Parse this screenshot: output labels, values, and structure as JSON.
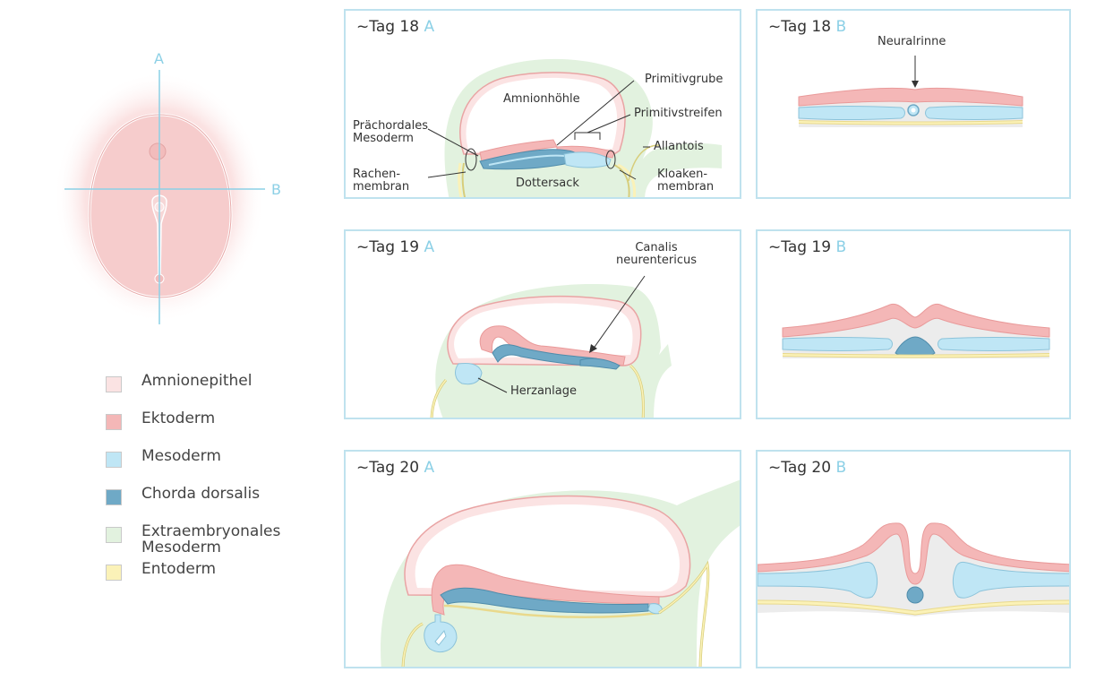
{
  "overview": {
    "axis_a_label": "A",
    "axis_b_label": "B"
  },
  "legend": [
    {
      "label": "Amnionepithel",
      "color": "#fbe3e3"
    },
    {
      "label": "Ektoderm",
      "color": "#f4b7b7"
    },
    {
      "label": "Mesoderm",
      "color": "#bfe6f5"
    },
    {
      "label": "Chorda dorsalis",
      "color": "#6fa9c6"
    },
    {
      "label": "Extraembryonales\nMesoderm",
      "color": "#e2f2df"
    },
    {
      "label": "Entoderm",
      "color": "#fbf2b8"
    }
  ],
  "panels": {
    "p18a": {
      "title": "~Tag 18",
      "section": "A",
      "labels": {
        "amnionhoehle": "Amnionhöhle",
        "primitivgrube": "Primitivgrube",
        "primitivstreifen": "Primitivstreifen",
        "praechordales": "Prächordales\nMesoderm",
        "allantois": "Allantois",
        "rachenmembran": "Rachen-\nmembran",
        "dottersack": "Dottersack",
        "kloakenmembran": "Kloaken-\nmembran"
      }
    },
    "p18b": {
      "title": "~Tag 18",
      "section": "B",
      "labels": {
        "neuralrinne": "Neuralrinne"
      }
    },
    "p19a": {
      "title": "~Tag 19",
      "section": "A",
      "labels": {
        "canalis": "Canalis\nneurentericus",
        "herzanlage": "Herzanlage"
      }
    },
    "p19b": {
      "title": "~Tag 19",
      "section": "B"
    },
    "p20a": {
      "title": "~Tag 20",
      "section": "A"
    },
    "p20b": {
      "title": "~Tag 20",
      "section": "B"
    }
  }
}
